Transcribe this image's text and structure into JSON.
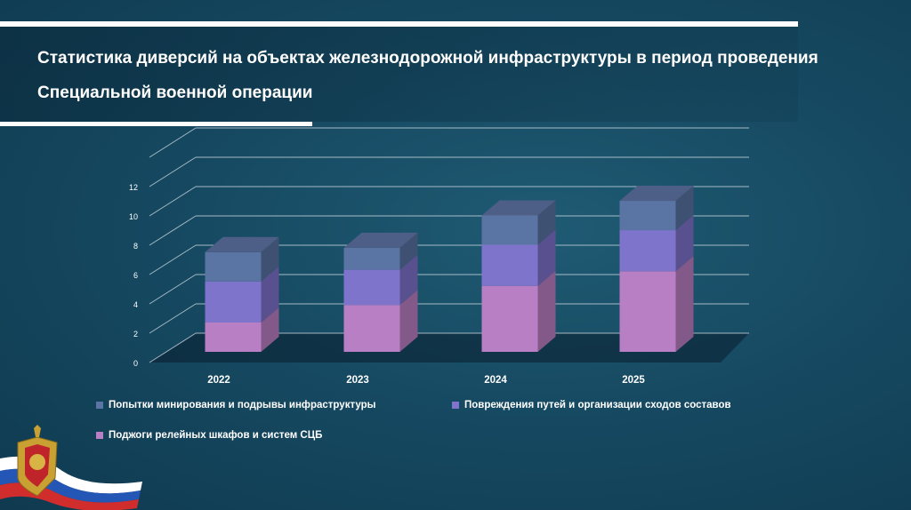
{
  "title": "Статистика диверсий на объектах железнодорожной инфраструктуры в период проведения Специальной военной операции",
  "chart_data": {
    "type": "bar",
    "stacked": true,
    "three_d": true,
    "categories": [
      "2022",
      "2023",
      "2024",
      "2025"
    ],
    "series": [
      {
        "name": "Поджоги релейных шкафов и систем СЦБ",
        "values": [
          2,
          3.2,
          4.5,
          5.5
        ],
        "color": "#b97fc4"
      },
      {
        "name": "Повреждения путей и организации сходов составов",
        "values": [
          2.8,
          2.4,
          2.8,
          2.8
        ],
        "color": "#7f74cc"
      },
      {
        "name": "Попытки минирования и подрывы инфраструктуры",
        "values": [
          2,
          1.5,
          2,
          2
        ],
        "color": "#5a74a3"
      }
    ],
    "y_ticks": [
      0,
      2,
      4,
      6,
      8,
      10,
      12
    ],
    "ylim": [
      0,
      14
    ],
    "grid": true,
    "legend_position": "bottom"
  },
  "legend": [
    {
      "label": "Попытки минирования и подрывы инфраструктуры",
      "color": "#5a74a3"
    },
    {
      "label": "Повреждения путей и организации сходов составов",
      "color": "#7f74cc"
    },
    {
      "label": "Поджоги релейных шкафов и систем СЦБ",
      "color": "#b97fc4"
    }
  ],
  "emblem": {
    "icon": "fsb-emblem-icon",
    "flag_colors": [
      "#ffffff",
      "#2457b5",
      "#d22d2d"
    ]
  }
}
